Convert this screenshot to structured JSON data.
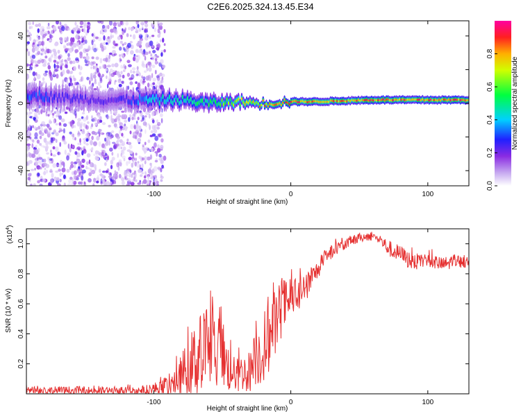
{
  "page_title": "C2E6.2025.324.13.45.E34",
  "chart_data": [
    {
      "type": "heatmap",
      "title": "C2E6.2025.324.13.45.E34",
      "xlabel": "Height of straight line (km)",
      "ylabel": "Frequency (Hz)",
      "xlim": [
        -193,
        130
      ],
      "ylim": [
        -49,
        49
      ],
      "x_ticks": [
        -100,
        0,
        100
      ],
      "x_tick_labels": [
        "-100",
        "0",
        "100"
      ],
      "y_ticks": [
        -40,
        -20,
        0,
        20,
        40
      ],
      "y_tick_labels": [
        "-40",
        "-20",
        "0",
        "20",
        "40"
      ],
      "colorbar": {
        "label": "Normalized spectral amplitude",
        "range": [
          0,
          1
        ],
        "ticks": [
          0.0,
          0.2,
          0.4,
          0.6,
          0.8
        ],
        "tick_labels": [
          "0.0",
          "0.2",
          "0.4",
          "0.6",
          "0.8"
        ],
        "colors": [
          "#ffffff",
          "#8a2be2",
          "#0000ff",
          "#00ffff",
          "#00ff00",
          "#ffff00",
          "#ff0000",
          "#ff00ff"
        ]
      },
      "noise_region_x": [
        -193,
        -92
      ],
      "signal_band": {
        "x": [
          -193,
          -160,
          -130,
          -100,
          -80,
          -60,
          -40,
          -20,
          0,
          20,
          60,
          100,
          130
        ],
        "center_hz": [
          5,
          3,
          2,
          2,
          2,
          0,
          1,
          0,
          1,
          1,
          2,
          2,
          2
        ],
        "half_width_hz": [
          6,
          5,
          5,
          5,
          4,
          4,
          3,
          2,
          2,
          2,
          2,
          2,
          2
        ],
        "peak_amplitude": [
          0.35,
          0.25,
          0.22,
          0.45,
          0.5,
          0.55,
          0.7,
          0.85,
          0.95,
          0.85,
          0.95,
          0.95,
          0.9
        ]
      }
    },
    {
      "type": "line",
      "xlabel": "Height of straight line (km)",
      "ylabel": "SNR (10 * v/v)",
      "y_multiplier_label": "(x10",
      "y_multiplier_exp": "4",
      "y_multiplier_close": ")",
      "xlim": [
        -193,
        130
      ],
      "ylim": [
        0,
        1.1
      ],
      "x_ticks": [
        -100,
        0,
        100
      ],
      "x_tick_labels": [
        "-100",
        "0",
        "100"
      ],
      "y_ticks": [
        0.2,
        0.4,
        0.6,
        0.8,
        1.0
      ],
      "y_tick_labels": [
        "0.2",
        "0.4",
        "0.6",
        "0.8",
        "1.0"
      ],
      "series": [
        {
          "name": "SNR",
          "color": "#e53030",
          "x": [
            -193,
            -170,
            -140,
            -110,
            -95,
            -88,
            -82,
            -76,
            -70,
            -64,
            -60,
            -56,
            -52,
            -48,
            -44,
            -40,
            -36,
            -30,
            -25,
            -20,
            -16,
            -12,
            -8,
            -4,
            0,
            4,
            8,
            12,
            16,
            20,
            25,
            30,
            35,
            40,
            45,
            50,
            55,
            60,
            65,
            70,
            75,
            80,
            85,
            90,
            95,
            100,
            105,
            110,
            115,
            120,
            125,
            130
          ],
          "values": [
            0.02,
            0.02,
            0.02,
            0.02,
            0.04,
            0.06,
            0.1,
            0.17,
            0.22,
            0.28,
            0.33,
            0.3,
            0.25,
            0.2,
            0.16,
            0.12,
            0.14,
            0.15,
            0.25,
            0.3,
            0.38,
            0.45,
            0.55,
            0.6,
            0.62,
            0.65,
            0.68,
            0.72,
            0.78,
            0.83,
            0.9,
            0.95,
            0.98,
            1.0,
            1.02,
            1.04,
            1.05,
            1.05,
            1.03,
            0.98,
            0.95,
            0.93,
            0.9,
            0.88,
            0.88,
            0.9,
            0.88,
            0.86,
            0.87,
            0.89,
            0.88,
            0.85
          ],
          "noise_amplitude": [
            0.03,
            0.03,
            0.03,
            0.03,
            0.05,
            0.08,
            0.12,
            0.18,
            0.25,
            0.3,
            0.32,
            0.3,
            0.25,
            0.2,
            0.15,
            0.12,
            0.12,
            0.14,
            0.2,
            0.25,
            0.25,
            0.22,
            0.2,
            0.18,
            0.15,
            0.12,
            0.12,
            0.1,
            0.08,
            0.06,
            0.05,
            0.05,
            0.04,
            0.04,
            0.04,
            0.03,
            0.03,
            0.03,
            0.04,
            0.05,
            0.06,
            0.06,
            0.06,
            0.06,
            0.05,
            0.05,
            0.05,
            0.05,
            0.05,
            0.05,
            0.04,
            0.04
          ]
        }
      ]
    }
  ]
}
